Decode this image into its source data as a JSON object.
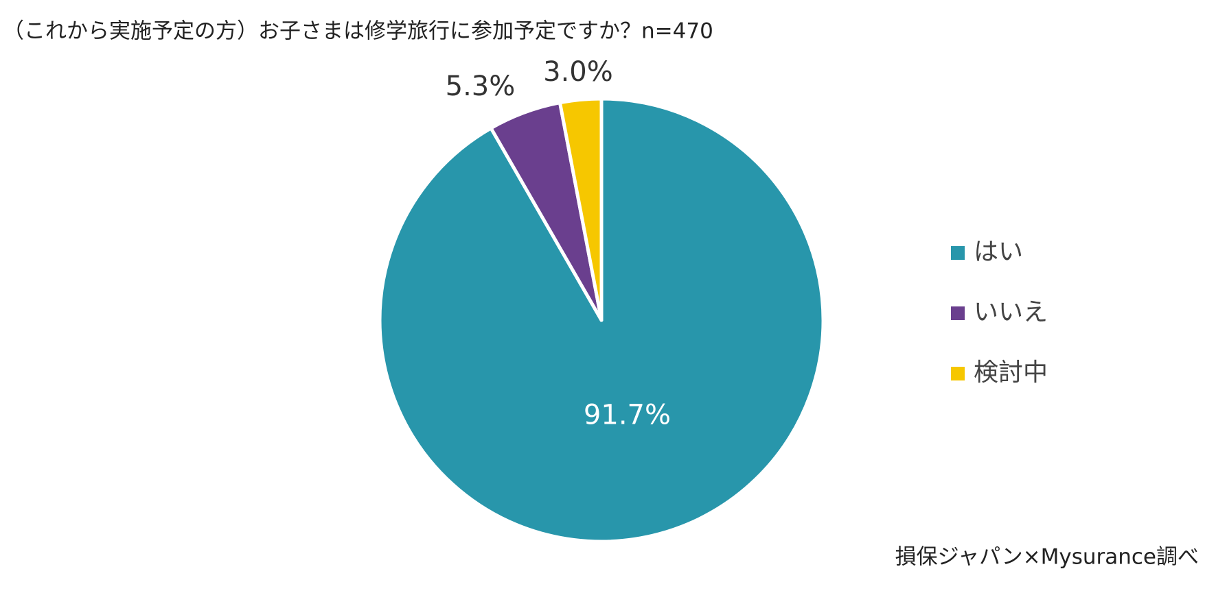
{
  "chart_data": {
    "type": "pie",
    "title": "（これから実施予定の方）お子さまは修学旅行に参加予定ですか？n=470",
    "categories": [
      "はい",
      "いいえ",
      "検討中"
    ],
    "values": [
      91.7,
      5.3,
      3.0
    ],
    "value_labels": [
      "91.7%",
      "5.3%",
      "3.0%"
    ],
    "colors": [
      "#2896ab",
      "#6a3f8e",
      "#f6c700"
    ],
    "legend": "right",
    "source": "損保ジャパン×Mysurance調べ"
  }
}
